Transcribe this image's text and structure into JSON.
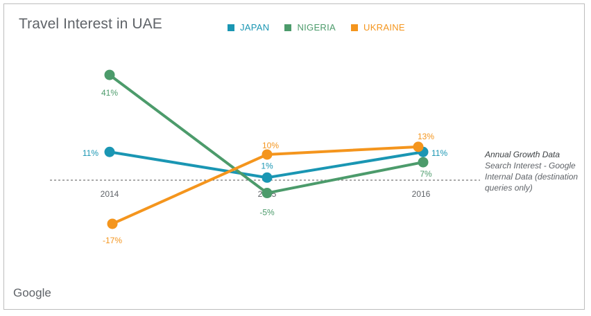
{
  "title": "Travel Interest in UAE",
  "note": {
    "heading": "Annual Growth Data",
    "body": "Search Interest - Google Internal Data (destination queries only)"
  },
  "logo": "Google",
  "chart_data": {
    "type": "line",
    "title": "Travel Interest in UAE",
    "x": [
      "2014",
      "2015",
      "2016"
    ],
    "ylim": [
      -20,
      45
    ],
    "legend_position": "top",
    "grid": false,
    "baseline": 0,
    "series": [
      {
        "name": "JAPAN",
        "color": "#1a96b3",
        "values": [
          11,
          1,
          11
        ],
        "labels": [
          "11%",
          "1%",
          "11%"
        ]
      },
      {
        "name": "NIGERIA",
        "color": "#4c9b6b",
        "values": [
          41,
          -5,
          7
        ],
        "labels": [
          "41%",
          "-5%",
          "7%"
        ]
      },
      {
        "name": "UKRAINE",
        "color": "#f4951d",
        "values": [
          -17,
          10,
          13
        ],
        "labels": [
          "-17%",
          "10%",
          "13%"
        ]
      }
    ]
  }
}
